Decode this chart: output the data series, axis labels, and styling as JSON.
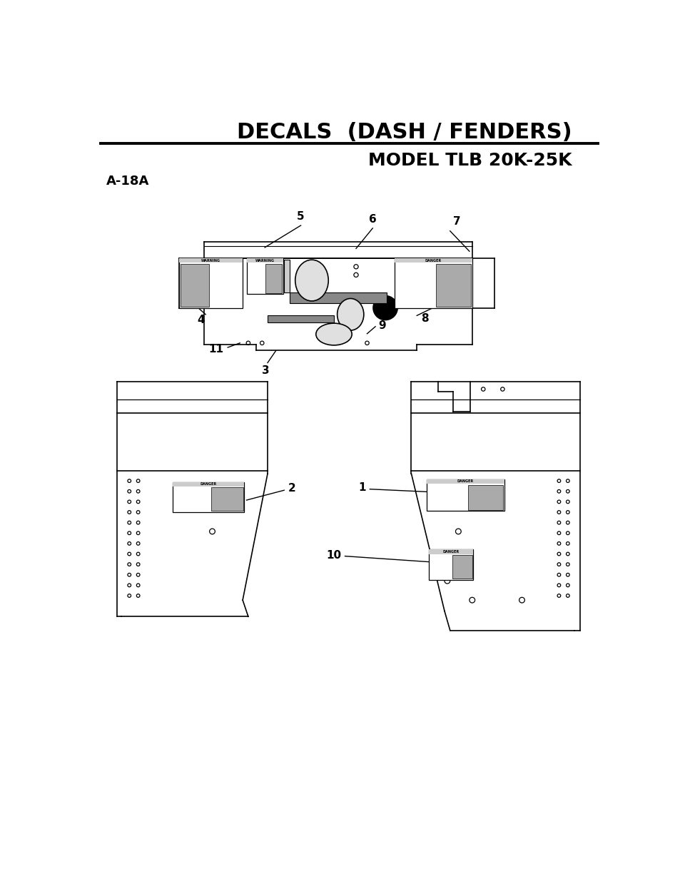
{
  "title": "DECALS  (DASH / FENDERS)",
  "subtitle": "MODEL TLB 20K-25K",
  "part_number": "A-18A",
  "bg_color": "#ffffff",
  "line_color": "#000000",
  "title_fontsize": 22,
  "subtitle_fontsize": 18,
  "part_fontsize": 13,
  "label_fontsize": 11
}
